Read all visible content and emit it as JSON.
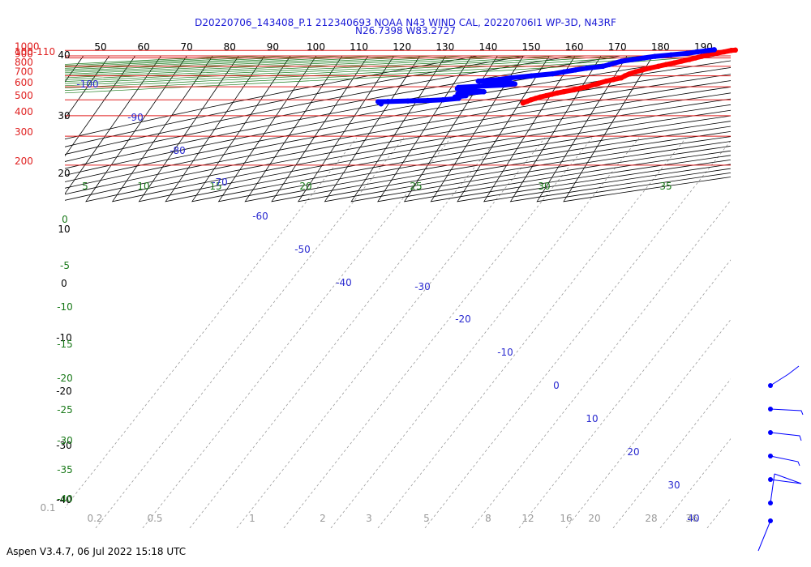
{
  "title_line1": "D20220706_143408_P.1 212340693 NOAA N43 WIND CAL, 20220706I1 WP-3D, N43RF",
  "title_line2": "N26.7398 W83.2727",
  "footer": "Aspen V3.4.7, 06 Jul 2022  15:18 UTC",
  "colors": {
    "pressure_lines": "#e02020",
    "dry_adiabats": "#000000",
    "moist_adiabats": "#1a7a1a",
    "isotherms": "#2a2ad0",
    "mixing_ratio": "#9a9a9a",
    "temperature_trace": "#ff0000",
    "dewpoint_trace": "#0000ff"
  },
  "chart_data": {
    "type": "line",
    "subtype": "skew-T log-P diagram",
    "pressure_levels": [
      100,
      200,
      300,
      400,
      500,
      600,
      700,
      800,
      900,
      1000
    ],
    "pressure_labels": [
      "100-110",
      "200",
      "300",
      "400",
      "500",
      "600",
      "700",
      "800",
      "900",
      "1000"
    ],
    "top_theta_labels": [
      "50",
      "60",
      "70",
      "80",
      "90",
      "100",
      "110",
      "120",
      "130",
      "140",
      "150",
      "160",
      "170",
      "180",
      "190"
    ],
    "left_theta_labels": [
      "40",
      "30",
      "20",
      "10",
      "0",
      "-10",
      "-20",
      "-30",
      "-40"
    ],
    "moist_labels_top": [
      "5",
      "10",
      "15",
      "20",
      "25",
      "30",
      "35"
    ],
    "moist_labels_left": [
      "0",
      "-5",
      "-10",
      "-15",
      "-20",
      "-25",
      "-30",
      "-35",
      "-40"
    ],
    "isotherm_labels": [
      "-100",
      "-90",
      "-80",
      "-70",
      "-60",
      "-50",
      "-40",
      "-30",
      "-20",
      "-10",
      "0",
      "10",
      "20",
      "30",
      "40"
    ],
    "mixing_ratio_labels": [
      "0.1",
      "0.2",
      "0.5",
      "1",
      "2",
      "3",
      "5",
      "8",
      "12",
      "16",
      "20",
      "28",
      "36"
    ],
    "temperature_profile": {
      "name": "Temperature",
      "pressure_hPa": [
        478,
        490,
        500,
        510,
        520,
        530,
        540,
        550,
        560,
        575,
        590,
        600,
        615,
        630,
        650,
        665,
        680,
        700,
        720,
        740,
        760,
        780,
        800,
        820,
        840,
        860,
        880,
        900,
        920,
        940,
        960,
        980,
        1000,
        1005
      ],
      "temp_C": [
        -8.0,
        -7.4,
        -6.9,
        -6.2,
        -5.5,
        -4.5,
        -3.6,
        -2.7,
        -1.6,
        0.2,
        1.3,
        2.4,
        3.1,
        4.1,
        5.3,
        6.5,
        7.8,
        8.2,
        8.8,
        9.7,
        10.8,
        12.0,
        13.4,
        14.7,
        16.1,
        17.3,
        18.6,
        19.6,
        20.6,
        21.8,
        23.0,
        24.4,
        25.6,
        26.4
      ]
    },
    "dewpoint_profile": {
      "name": "Dewpoint",
      "pressure_hPa": [
        472,
        487,
        488,
        492,
        495,
        500,
        510,
        520,
        530,
        545,
        560,
        575,
        585,
        595,
        605,
        615,
        625,
        635,
        650,
        665,
        680,
        700,
        720,
        740,
        760,
        780,
        800,
        820,
        840,
        860,
        880,
        900,
        920,
        940,
        960,
        980,
        1000,
        1010
      ],
      "temp_C": [
        -37,
        -38,
        -36,
        -32,
        -28,
        -25,
        -22,
        -23,
        -21,
        -23,
        -18,
        -23,
        -24,
        -24,
        -20,
        -15,
        -13,
        -14,
        -21,
        -17,
        -15,
        -11,
        -7,
        -5,
        -3,
        -1,
        2,
        3,
        4,
        5,
        7,
        9,
        11,
        14,
        17,
        19,
        21,
        22
      ]
    },
    "wind_barbs_levels": 7
  }
}
